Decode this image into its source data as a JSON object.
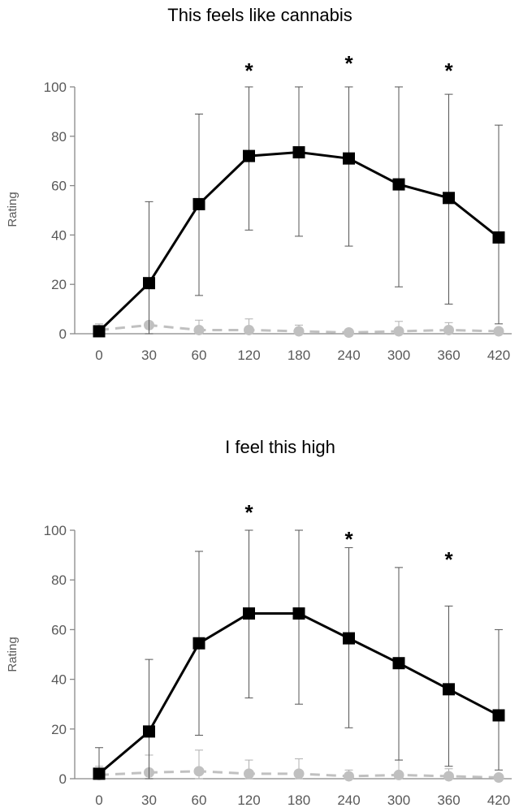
{
  "chart_data": [
    {
      "type": "line",
      "title": "This feels like cannabis",
      "xlabel": "",
      "ylabel": "Rating",
      "ylim": [
        0,
        100
      ],
      "yticks": [
        0,
        20,
        40,
        60,
        80,
        100
      ],
      "categories": [
        "0",
        "30",
        "60",
        "120",
        "180",
        "240",
        "300",
        "360",
        "420"
      ],
      "grid": false,
      "series": [
        {
          "style": "solid",
          "color": "#000000",
          "marker": "square",
          "values": [
            1,
            20.5,
            52.5,
            72,
            73.5,
            71,
            60.5,
            55,
            39
          ],
          "error_upper": [
            3,
            53.5,
            89,
            100,
            100,
            100,
            100,
            97,
            84.5
          ],
          "error_lower": [
            0,
            0,
            15.5,
            42,
            39.5,
            35.5,
            19,
            12,
            4
          ]
        },
        {
          "style": "dashed",
          "color": "#c0c0c0",
          "marker": "circle",
          "values": [
            1.5,
            3.5,
            1.5,
            1.5,
            1,
            0.5,
            1,
            1.5,
            1
          ],
          "error_upper": [
            4,
            4.5,
            5.5,
            6,
            3.5,
            1.5,
            5,
            4.5,
            2
          ],
          "error_lower": [
            0,
            0,
            0,
            0,
            0,
            0,
            0,
            0,
            0
          ]
        }
      ],
      "significance_marks": [
        {
          "category": "120",
          "label": "*"
        },
        {
          "category": "240",
          "label": "*"
        },
        {
          "category": "360",
          "label": "*"
        }
      ]
    },
    {
      "type": "line",
      "title": "I feel this high",
      "xlabel": "",
      "ylabel": "Rating",
      "ylim": [
        0,
        100
      ],
      "yticks": [
        0,
        20,
        40,
        60,
        80,
        100
      ],
      "categories": [
        "0",
        "30",
        "60",
        "120",
        "180",
        "240",
        "300",
        "360",
        "420"
      ],
      "grid": false,
      "series": [
        {
          "style": "solid",
          "color": "#000000",
          "marker": "square",
          "values": [
            2,
            19,
            54.5,
            66.5,
            66.5,
            56.5,
            46.5,
            36,
            25.5
          ],
          "error_upper": [
            12.5,
            48,
            91.5,
            100,
            100,
            93,
            85,
            69.5,
            60
          ],
          "error_lower": [
            0,
            0,
            17.5,
            32.5,
            30,
            20.5,
            7.5,
            5,
            3.5
          ]
        },
        {
          "style": "dashed",
          "color": "#c0c0c0",
          "marker": "circle",
          "values": [
            1.5,
            2.5,
            3,
            2,
            2,
            1,
            1.5,
            1,
            0.5
          ],
          "error_upper": [
            5,
            9.5,
            11.5,
            7.5,
            8,
            3.5,
            7.5,
            4,
            1.5
          ],
          "error_lower": [
            0,
            0,
            0,
            0,
            0,
            0,
            0,
            0,
            0
          ]
        }
      ],
      "significance_marks": [
        {
          "category": "120",
          "label": "*"
        },
        {
          "category": "240",
          "label": "*"
        },
        {
          "category": "360",
          "label": "*"
        }
      ]
    }
  ]
}
